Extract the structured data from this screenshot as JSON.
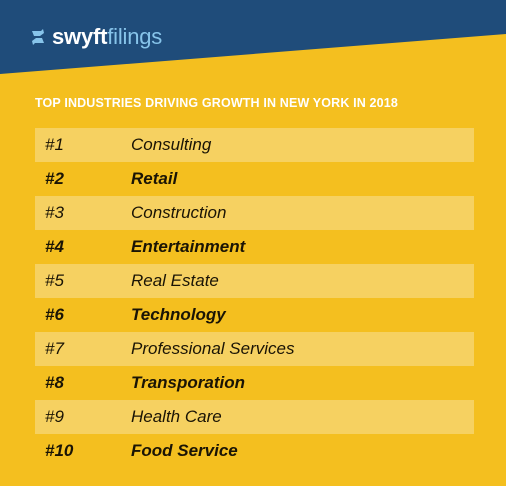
{
  "brand": {
    "name_part_1": "swyft",
    "name_part_2": "filings",
    "icon": "swyft-s-logo-icon"
  },
  "colors": {
    "background": "#f4bf1f",
    "header": "#1f4c7a",
    "row_shade": "#f6d161",
    "brand_accent": "#87c4ea",
    "text_dark": "#1a1405"
  },
  "headline": "TOP INDUSTRIES DRIVING GROWTH IN NEW YORK IN 2018",
  "rankings": [
    {
      "rank": "#1",
      "industry": "Consulting"
    },
    {
      "rank": "#2",
      "industry": "Retail"
    },
    {
      "rank": "#3",
      "industry": "Construction"
    },
    {
      "rank": "#4",
      "industry": "Entertainment"
    },
    {
      "rank": "#5",
      "industry": "Real Estate"
    },
    {
      "rank": "#6",
      "industry": "Technology"
    },
    {
      "rank": "#7",
      "industry": "Professional Services"
    },
    {
      "rank": "#8",
      "industry": "Transporation"
    },
    {
      "rank": "#9",
      "industry": "Health Care"
    },
    {
      "rank": "#10",
      "industry": "Food Service"
    }
  ]
}
